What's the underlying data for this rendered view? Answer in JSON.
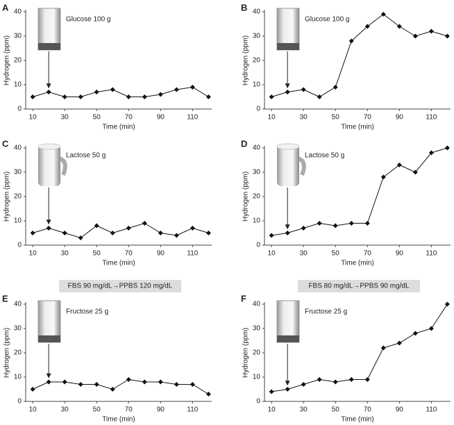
{
  "chart_data": [
    {
      "type": "line",
      "panel_label": "A",
      "annotation": "Glucose 100 g",
      "x_label": "Time (min)",
      "y_label": "Hydrogen (ppm)",
      "x": [
        10,
        20,
        30,
        40,
        50,
        60,
        70,
        80,
        90,
        100,
        110,
        120
      ],
      "series": [
        {
          "color": "#111",
          "values": [
            5,
            7,
            5,
            5,
            7,
            8,
            5,
            5,
            6,
            8,
            9,
            5
          ]
        }
      ],
      "xlim": [
        5.6,
        122
      ],
      "ylim": [
        0,
        40
      ],
      "xticks": [
        10,
        30,
        50,
        70,
        90,
        110
      ],
      "yticks": [
        0,
        10,
        20,
        30,
        40
      ]
    },
    {
      "type": "line",
      "panel_label": "B",
      "annotation": "Glucose 100 g",
      "x_label": "Time (min)",
      "y_label": "Hydrogen (ppm)",
      "x": [
        10,
        20,
        30,
        40,
        50,
        60,
        70,
        80,
        90,
        100,
        110,
        120
      ],
      "series": [
        {
          "color": "#111",
          "values": [
            5,
            7,
            8,
            5,
            9,
            28,
            34,
            39,
            34,
            30,
            32,
            30
          ]
        }
      ],
      "xlim": [
        5.6,
        122
      ],
      "ylim": [
        0,
        40
      ],
      "xticks": [
        10,
        30,
        50,
        70,
        90,
        110
      ],
      "yticks": [
        0,
        10,
        20,
        30,
        40
      ]
    },
    {
      "type": "line",
      "panel_label": "C",
      "annotation": "Lactose 50 g",
      "x_label": "Time (min)",
      "y_label": "Hydrogen (ppm)",
      "x": [
        10,
        20,
        30,
        40,
        50,
        60,
        70,
        80,
        90,
        100,
        110,
        120
      ],
      "series": [
        {
          "color": "#111",
          "values": [
            5,
            7,
            5,
            3,
            8,
            5,
            7,
            9,
            5,
            4,
            7,
            5
          ]
        }
      ],
      "xlim": [
        5.6,
        122
      ],
      "ylim": [
        0,
        40
      ],
      "xticks": [
        10,
        30,
        50,
        70,
        90,
        110
      ],
      "yticks": [
        0,
        10,
        20,
        30,
        40
      ]
    },
    {
      "type": "line",
      "panel_label": "D",
      "annotation": "Lactose 50 g",
      "x_label": "Time (min)",
      "y_label": "Hydrogen (ppm)",
      "x": [
        10,
        20,
        30,
        40,
        50,
        60,
        70,
        80,
        90,
        100,
        110,
        120
      ],
      "series": [
        {
          "color": "#111",
          "values": [
            4,
            5,
            7,
            9,
            8,
            9,
            9,
            28,
            33,
            30,
            38,
            40
          ]
        }
      ],
      "xlim": [
        5.6,
        122
      ],
      "ylim": [
        0,
        40
      ],
      "xticks": [
        10,
        30,
        50,
        70,
        90,
        110
      ],
      "yticks": [
        0,
        10,
        20,
        30,
        40
      ]
    },
    {
      "type": "line",
      "panel_label": "E",
      "subtitle": "FBS 90 mg/dL→PPBS 120 mg/dL",
      "annotation": "Fructose 25 g",
      "x_label": "Time (min)",
      "y_label": "Hydrogen (ppm)",
      "x": [
        10,
        20,
        30,
        40,
        50,
        60,
        70,
        80,
        90,
        100,
        110,
        120
      ],
      "series": [
        {
          "color": "#111",
          "values": [
            5,
            8,
            8,
            7,
            7,
            5,
            9,
            8,
            8,
            7,
            7,
            3
          ]
        }
      ],
      "xlim": [
        5.6,
        122
      ],
      "ylim": [
        0,
        40
      ],
      "xticks": [
        10,
        30,
        50,
        70,
        90,
        110
      ],
      "yticks": [
        0,
        10,
        20,
        30,
        40
      ]
    },
    {
      "type": "line",
      "panel_label": "F",
      "subtitle": "FBS 80 mg/dL→PPBS 90 mg/dL",
      "annotation": "Fructose 25 g",
      "x_label": "Time (min)",
      "y_label": "Hydrogen (ppm)",
      "x": [
        10,
        20,
        30,
        40,
        50,
        60,
        70,
        80,
        90,
        100,
        110,
        120
      ],
      "series": [
        {
          "color": "#111",
          "values": [
            4,
            5,
            7,
            9,
            8,
            9,
            9,
            22,
            24,
            28,
            30,
            40
          ]
        }
      ],
      "xlim": [
        5.6,
        122
      ],
      "ylim": [
        0,
        40
      ],
      "xticks": [
        10,
        30,
        50,
        70,
        90,
        110
      ],
      "yticks": [
        0,
        10,
        20,
        30,
        40
      ]
    }
  ]
}
